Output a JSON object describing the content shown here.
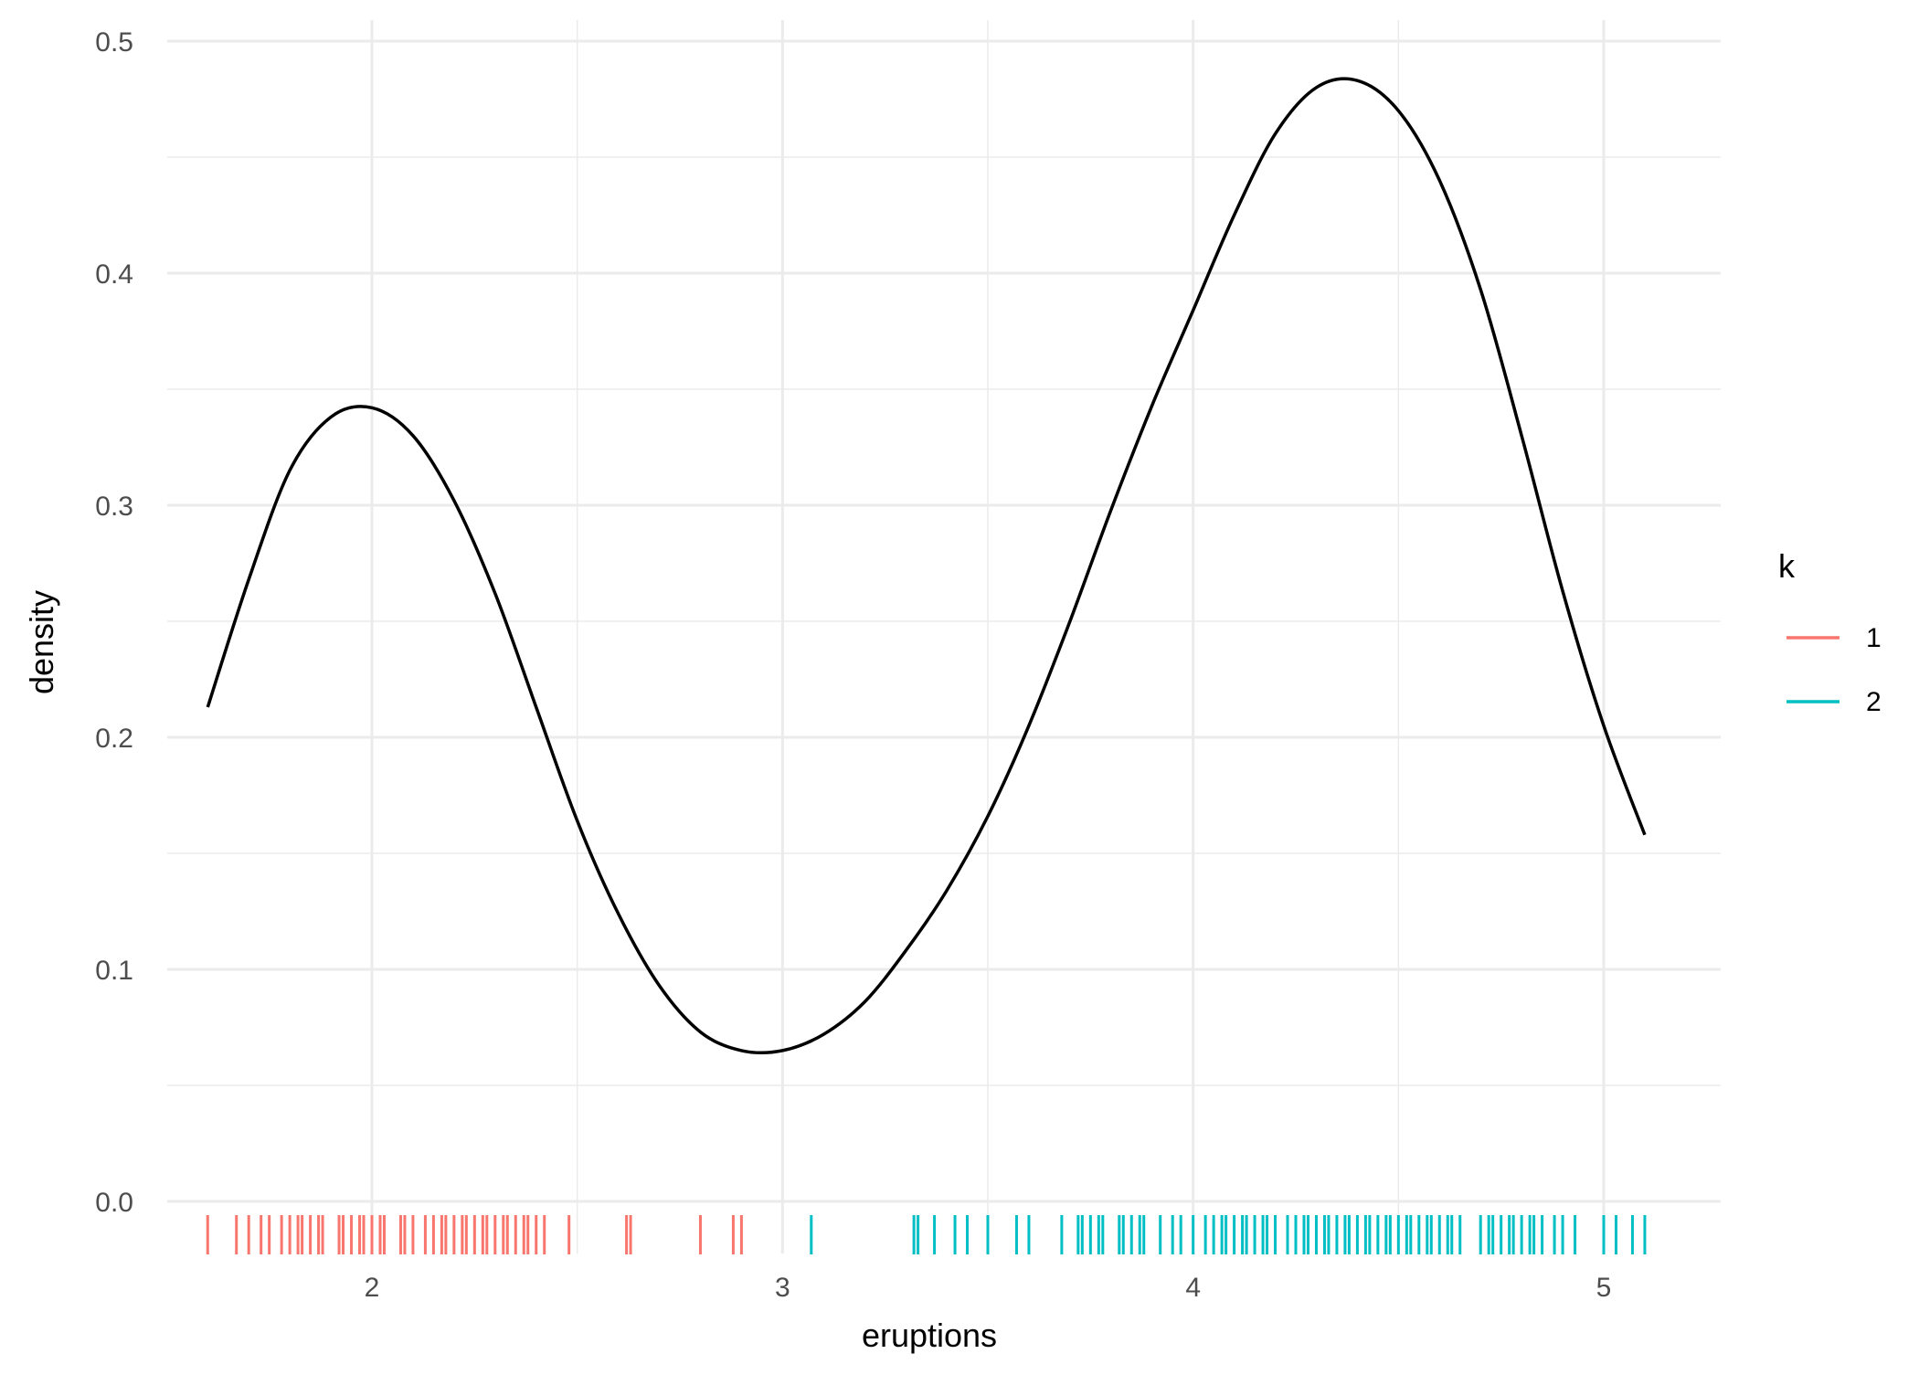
{
  "chart_data": {
    "type": "line",
    "title": "",
    "xlabel": "eruptions",
    "ylabel": "density",
    "xlim": [
      1.5,
      5.28
    ],
    "ylim": [
      -0.025,
      0.5
    ],
    "x_ticks": [
      2,
      3,
      4,
      5
    ],
    "x_tick_labels": [
      "2",
      "3",
      "4",
      "5"
    ],
    "y_ticks": [
      0.0,
      0.1,
      0.2,
      0.3,
      0.4,
      0.5
    ],
    "y_tick_labels": [
      "0.0",
      "0.1",
      "0.2",
      "0.3",
      "0.4",
      "0.5"
    ],
    "grid": true,
    "legend": {
      "title": "k",
      "placement": "right",
      "entries": [
        {
          "label": "1",
          "color": "#F8766D"
        },
        {
          "label": "2",
          "color": "#00BFC4"
        }
      ]
    },
    "density_curve": {
      "color": "#000000",
      "x": [
        1.6,
        1.7,
        1.8,
        1.9,
        2.0,
        2.1,
        2.2,
        2.3,
        2.4,
        2.5,
        2.6,
        2.7,
        2.8,
        2.9,
        3.0,
        3.1,
        3.2,
        3.3,
        3.4,
        3.5,
        3.6,
        3.7,
        3.8,
        3.9,
        4.0,
        4.1,
        4.2,
        4.3,
        4.4,
        4.5,
        4.6,
        4.7,
        4.8,
        4.9,
        5.0,
        5.1
      ],
      "y": [
        0.213,
        0.268,
        0.315,
        0.338,
        0.342,
        0.33,
        0.302,
        0.262,
        0.213,
        0.164,
        0.124,
        0.093,
        0.073,
        0.065,
        0.065,
        0.072,
        0.086,
        0.108,
        0.134,
        0.166,
        0.205,
        0.25,
        0.298,
        0.343,
        0.384,
        0.425,
        0.46,
        0.48,
        0.483,
        0.47,
        0.44,
        0.393,
        0.33,
        0.263,
        0.205,
        0.158
      ]
    },
    "rug": {
      "series": [
        {
          "name": "1",
          "color": "#F8766D",
          "x": [
            1.6,
            1.67,
            1.7,
            1.73,
            1.75,
            1.78,
            1.8,
            1.82,
            1.83,
            1.85,
            1.87,
            1.88,
            1.92,
            1.93,
            1.95,
            1.97,
            1.98,
            2.0,
            2.02,
            2.03,
            2.07,
            2.08,
            2.1,
            2.13,
            2.15,
            2.17,
            2.18,
            2.2,
            2.22,
            2.23,
            2.25,
            2.27,
            2.28,
            2.3,
            2.32,
            2.33,
            2.35,
            2.37,
            2.38,
            2.4,
            2.42,
            2.48,
            2.62,
            2.63,
            2.8,
            2.88,
            2.9
          ]
        },
        {
          "name": "2",
          "color": "#00BFC4",
          "x": [
            3.07,
            3.32,
            3.33,
            3.37,
            3.42,
            3.45,
            3.5,
            3.57,
            3.6,
            3.68,
            3.72,
            3.73,
            3.75,
            3.77,
            3.78,
            3.82,
            3.83,
            3.85,
            3.87,
            3.88,
            3.92,
            3.95,
            3.97,
            4.0,
            4.03,
            4.05,
            4.07,
            4.08,
            4.1,
            4.12,
            4.13,
            4.15,
            4.17,
            4.18,
            4.2,
            4.23,
            4.25,
            4.27,
            4.28,
            4.3,
            4.32,
            4.33,
            4.35,
            4.37,
            4.38,
            4.4,
            4.42,
            4.43,
            4.45,
            4.47,
            4.48,
            4.5,
            4.52,
            4.53,
            4.55,
            4.57,
            4.58,
            4.6,
            4.62,
            4.63,
            4.65,
            4.7,
            4.72,
            4.73,
            4.75,
            4.77,
            4.78,
            4.8,
            4.82,
            4.83,
            4.85,
            4.88,
            4.9,
            4.93,
            5.0,
            5.03,
            5.07,
            5.1
          ]
        }
      ]
    }
  }
}
